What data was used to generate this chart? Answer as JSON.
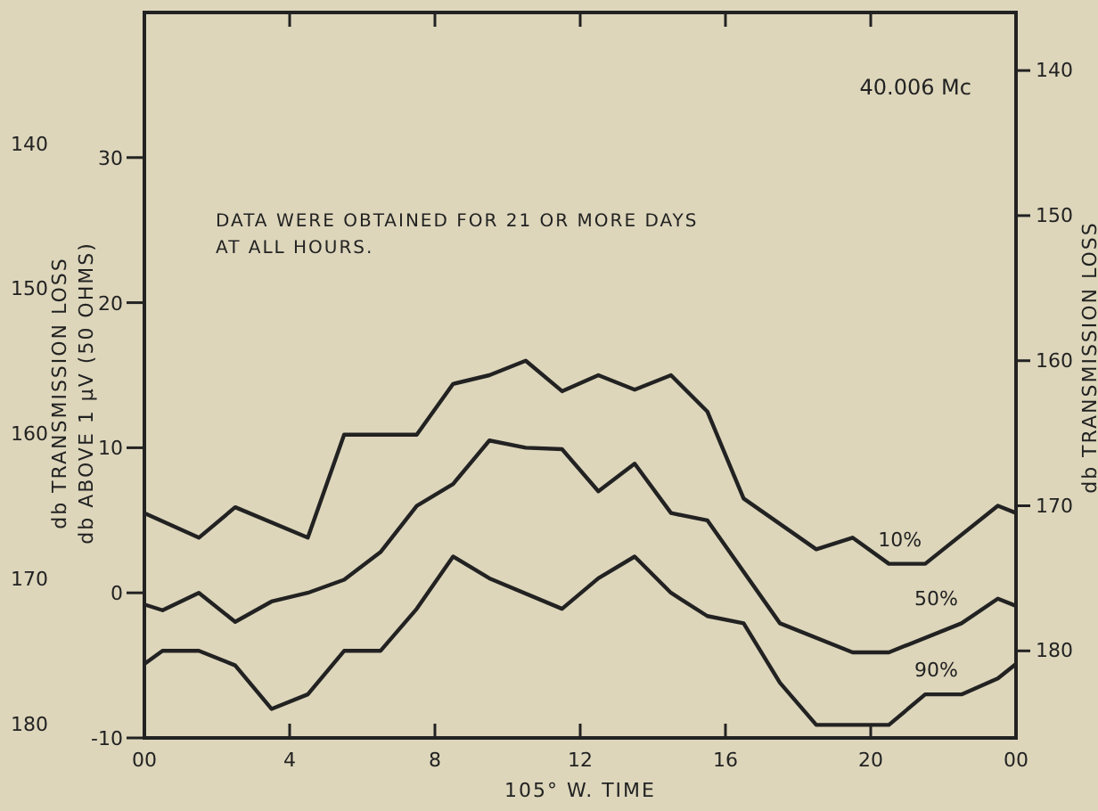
{
  "chart_data": {
    "type": "line",
    "xlabel": "105° W. TIME",
    "ylabel": "db ABOVE 1 µV (50 OHMS)",
    "y2label": "db TRANSMISSION LOSS",
    "y3label": "db TRANSMISSION LOSS",
    "annotations": [
      "40.006 Mc",
      "DATA WERE OBTAINED FOR 21 OR MORE DAYS",
      "AT ALL HOURS."
    ],
    "xlim": [
      0,
      24
    ],
    "xticks": [
      {
        "value": 0,
        "label": "00"
      },
      4,
      8,
      12,
      16,
      20,
      {
        "value": 24,
        "label": "00"
      }
    ],
    "ylim": [
      -10,
      40
    ],
    "yticks": [
      -10,
      0,
      10,
      20,
      30
    ],
    "y2lim": [
      186,
      136
    ],
    "y2ticks": [
      140,
      150,
      160,
      170,
      180
    ],
    "y3lim": [
      181,
      131
    ],
    "y3ticks": [
      140,
      150,
      160,
      170,
      180
    ],
    "grid": false,
    "marker": "none",
    "line_style": "solid",
    "series": [
      {
        "name": "10%",
        "color": "#222222",
        "x": [
          0,
          1.5,
          2.5,
          4.5,
          5.5,
          7.5,
          8.5,
          9.5,
          10.5,
          11.5,
          12.5,
          13.5,
          14.5,
          15.5,
          16.5,
          18.5,
          19.5,
          20.5,
          21.5,
          23.5,
          24
        ],
        "values": [
          5.5,
          3.8,
          5.9,
          3.8,
          10.9,
          10.9,
          14.4,
          15,
          16,
          13.9,
          15,
          14,
          15,
          12.5,
          6.5,
          3,
          3.8,
          2,
          2,
          6,
          5.5
        ]
      },
      {
        "name": "50%",
        "color": "#222222",
        "x": [
          0,
          0.5,
          1.5,
          2.5,
          3.5,
          4.5,
          5.5,
          6.5,
          7.5,
          8.5,
          9.5,
          10.5,
          11.5,
          12.5,
          13.5,
          14.5,
          15.5,
          17.5,
          19.5,
          20.5,
          22.5,
          23.5,
          24
        ],
        "values": [
          -0.8,
          -1.2,
          0,
          -2,
          -0.6,
          0,
          0.9,
          2.8,
          6,
          7.5,
          10.5,
          10,
          9.9,
          7,
          8.9,
          5.5,
          5,
          -2.1,
          -4.1,
          -4.1,
          -2.1,
          -0.4,
          -0.9
        ]
      },
      {
        "name": "90%",
        "color": "#222222",
        "x": [
          0,
          0.5,
          1.5,
          2.5,
          3.5,
          4.5,
          5.5,
          6.5,
          7.5,
          8.5,
          9.5,
          11.5,
          12.5,
          13.5,
          14.5,
          15.5,
          16.5,
          17.5,
          18.5,
          20.5,
          21.5,
          22.5,
          23.5,
          24
        ],
        "values": [
          -4.9,
          -4,
          -4,
          -5,
          -8,
          -7,
          -4,
          -4,
          -1.1,
          2.5,
          1,
          -1.1,
          1,
          2.5,
          0,
          -1.6,
          -2.1,
          -6.2,
          -9.1,
          -9.1,
          -7,
          -7,
          -5.9,
          -4.9
        ]
      }
    ]
  }
}
